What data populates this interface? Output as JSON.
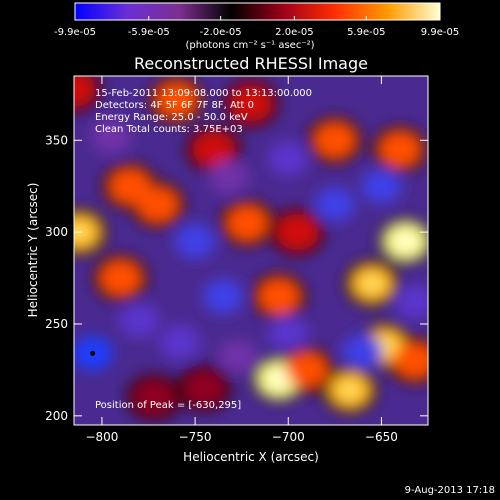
{
  "colorbar": {
    "tick_labels": [
      "-9.9e-05",
      "-5.9e-05",
      "-2.0e-05",
      "2.0e-05",
      "5.9e-05",
      "9.9e-05"
    ],
    "tick_values": [
      -9.9e-05,
      -5.9e-05,
      -2e-05,
      2e-05,
      5.9e-05,
      9.9e-05
    ],
    "range": [
      -9.9e-05,
      9.9e-05
    ],
    "unit_label": "(photons cm⁻² s⁻¹ asec⁻²)",
    "colors": [
      "#0000ff",
      "#6a2fd6",
      "#7c2f8f",
      "#000000",
      "#a0001a",
      "#ff3000",
      "#ff9a00",
      "#ffffd0"
    ]
  },
  "chart_data": {
    "type": "heatmap",
    "title": "Reconstructed RHESSI Image",
    "xlabel": "Heliocentric X (arcsec)",
    "ylabel": "Heliocentric Y (arcsec)",
    "xlim": [
      -815,
      -625
    ],
    "ylim": [
      195,
      385
    ],
    "x_ticks": [
      -800,
      -750,
      -700,
      -650
    ],
    "x_tick_labels": [
      "−800",
      "−750",
      "−700",
      "−650"
    ],
    "y_ticks": [
      200,
      250,
      300,
      350
    ],
    "y_tick_labels": [
      "200",
      "250",
      "300",
      "350"
    ],
    "annotations": [
      "15-Feb-2011 13:09:08.000 to 13:13:00.000",
      "Detectors: 4F 5F 6F 7F 8F, Att 0",
      "Energy Range: 25.0 - 50.0 keV",
      "Clean    Total counts: 3.75E+03"
    ],
    "peak_label": "Position of Peak = [-630,295]",
    "peak_position": [
      -630,
      295
    ],
    "min_marker": [
      -805,
      234
    ],
    "blobs": [
      {
        "x": -745,
        "y": 215,
        "v": 0.4
      },
      {
        "x": -705,
        "y": 220,
        "v": 0.9
      },
      {
        "x": -690,
        "y": 225,
        "v": 0.7
      },
      {
        "x": -667,
        "y": 214,
        "v": 0.8
      },
      {
        "x": -648,
        "y": 238,
        "v": 0.8
      },
      {
        "x": -632,
        "y": 230,
        "v": 0.6
      },
      {
        "x": -637,
        "y": 295,
        "v": 1.0
      },
      {
        "x": -655,
        "y": 272,
        "v": 0.8
      },
      {
        "x": -675,
        "y": 350,
        "v": 0.7
      },
      {
        "x": -640,
        "y": 345,
        "v": 0.7
      },
      {
        "x": -705,
        "y": 265,
        "v": 0.7
      },
      {
        "x": -722,
        "y": 305,
        "v": 0.6
      },
      {
        "x": -695,
        "y": 300,
        "v": 0.5
      },
      {
        "x": -770,
        "y": 315,
        "v": 0.7
      },
      {
        "x": -785,
        "y": 325,
        "v": 0.6
      },
      {
        "x": -760,
        "y": 372,
        "v": 0.7
      },
      {
        "x": -720,
        "y": 370,
        "v": 0.5
      },
      {
        "x": -790,
        "y": 275,
        "v": 0.6
      },
      {
        "x": -812,
        "y": 300,
        "v": 0.8
      },
      {
        "x": -815,
        "y": 378,
        "v": 0.5
      },
      {
        "x": -740,
        "y": 345,
        "v": 0.5
      },
      {
        "x": -772,
        "y": 210,
        "v": 0.3
      },
      {
        "x": -805,
        "y": 234,
        "v": -1.0
      },
      {
        "x": -750,
        "y": 295,
        "v": -0.7
      },
      {
        "x": -735,
        "y": 265,
        "v": -0.8
      },
      {
        "x": -758,
        "y": 240,
        "v": -0.6
      },
      {
        "x": -675,
        "y": 315,
        "v": -0.7
      },
      {
        "x": -650,
        "y": 325,
        "v": -0.8
      },
      {
        "x": -660,
        "y": 235,
        "v": -0.7
      },
      {
        "x": -700,
        "y": 340,
        "v": -0.6
      },
      {
        "x": -700,
        "y": 245,
        "v": -0.5
      },
      {
        "x": -727,
        "y": 232,
        "v": -0.4
      },
      {
        "x": -780,
        "y": 252,
        "v": -0.5
      },
      {
        "x": -632,
        "y": 262,
        "v": -0.5
      },
      {
        "x": -732,
        "y": 330,
        "v": -0.4
      },
      {
        "x": -795,
        "y": 352,
        "v": -0.4
      }
    ]
  },
  "footer": {
    "date": "9-Aug-2013 17:18"
  }
}
